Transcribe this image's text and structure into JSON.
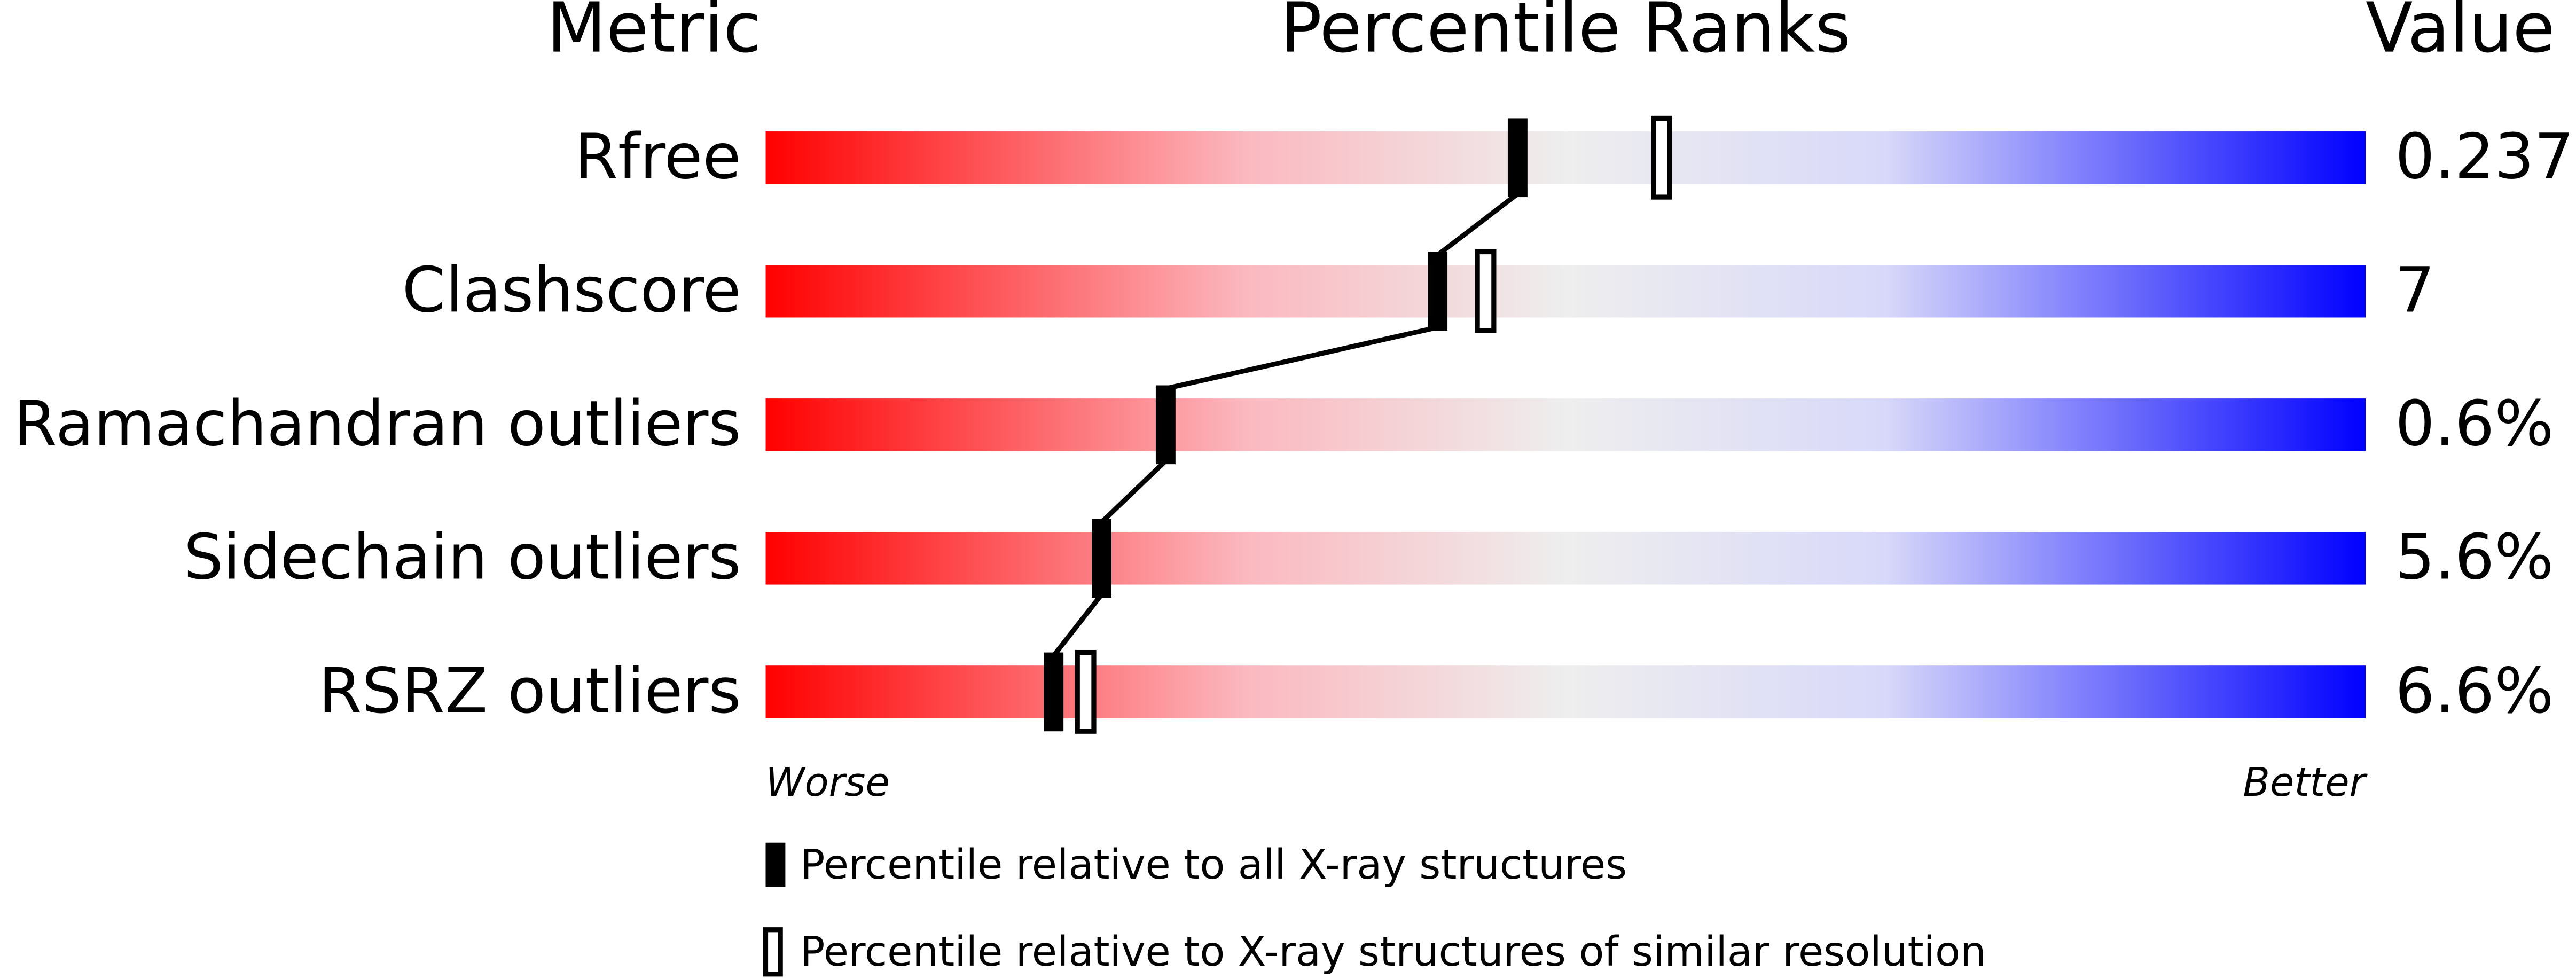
{
  "chart_data": {
    "type": "percentile-ranks",
    "headers": [
      "Metric",
      "Percentile Ranks",
      "Value"
    ],
    "categories": [
      "Rfree",
      "Clashscore",
      "Ramachandran outliers",
      "Sidechain outliers",
      "RSRZ outliers"
    ],
    "metric_values": [
      "0.237",
      "7",
      "0.6%",
      "5.6%",
      "6.6%"
    ],
    "series": [
      {
        "name": "Percentile relative to all X-ray structures",
        "color": "#000000",
        "values": [
          47,
          42,
          25,
          21,
          18
        ]
      },
      {
        "name": "Percentile relative to X-ray structures of similar resolution",
        "color": "#ffffff",
        "values": [
          56,
          45,
          null,
          null,
          20
        ]
      }
    ],
    "xlim": [
      0,
      100
    ],
    "axis_labels": {
      "low": "Worse",
      "high": "Better"
    }
  }
}
